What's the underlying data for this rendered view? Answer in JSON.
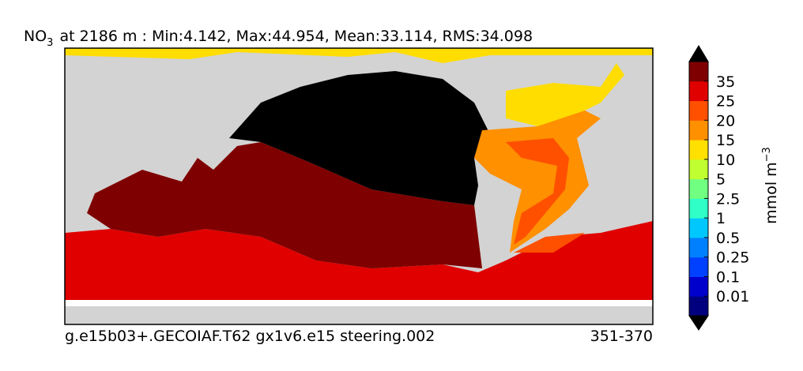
{
  "title": {
    "species": "NO",
    "subscript": "3",
    "text": "at 2186 m : Min:4.142, Max:44.954, Mean:33.114, RMS:34.098"
  },
  "colorbar": {
    "label": "mmol m",
    "label_superscript": "−3",
    "extend_color": "#000000",
    "segment_colors": [
      "#00007f",
      "#0000cd",
      "#0040ff",
      "#0080ff",
      "#00c8ff",
      "#30ffc8",
      "#70ff80",
      "#c0ff30",
      "#ffe000",
      "#ff9000",
      "#ff5000",
      "#e00000",
      "#7f0000"
    ],
    "tick_labels": [
      "0.01",
      "0.1",
      "0.25",
      "0.5",
      "1",
      "2.5",
      "5",
      "10",
      "15",
      "20",
      "25",
      "35"
    ]
  },
  "footer": {
    "left": "g.e15b03+.GECOIAF.T62 gx1v6.e15 steering.002",
    "right": "351-370"
  }
}
